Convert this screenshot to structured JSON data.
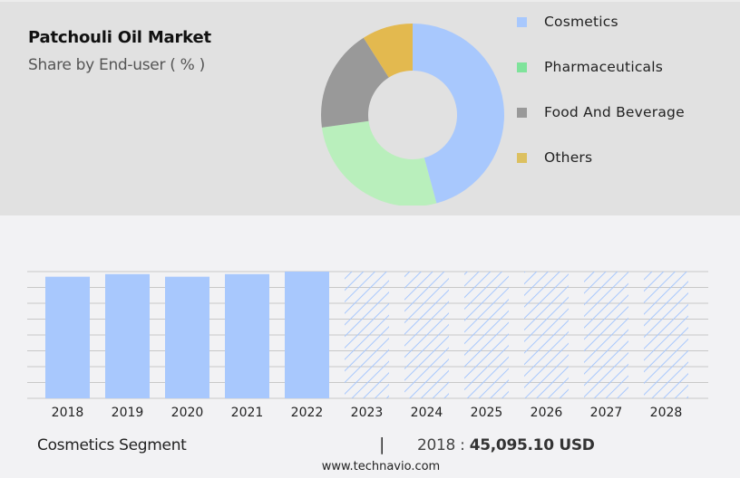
{
  "header": {
    "title": "Patchouli Oil Market",
    "subtitle": "Share by End-user ( % )"
  },
  "colors": {
    "top_panel_bg": "#e1e1e1",
    "page_bg": "#f2f2f4",
    "cosmetics": "#a8c8fd",
    "pharmaceuticals": "#b9efbc",
    "food_and_beverage": "#999999",
    "others": "#e3b94f",
    "gridline": "#c8c8c8"
  },
  "legend": {
    "items": [
      {
        "label": "Cosmetics",
        "color": "#a8c8fd"
      },
      {
        "label": "Pharmaceuticals",
        "color": "#7fe39b"
      },
      {
        "label": "Food And Beverage",
        "color": "#999999"
      },
      {
        "label": "Others",
        "color": "#dcc060"
      }
    ]
  },
  "footer": {
    "segment_label": "Cosmetics Segment",
    "separator": "|",
    "year": "2018",
    "colon": " : ",
    "value": "45,095.10 USD",
    "url": "www.technavio.com"
  },
  "chart_data": [
    {
      "type": "pie",
      "subtype": "donut",
      "title": "Patchouli Oil Market",
      "subtitle": "Share by End-user ( % )",
      "categories": [
        "Cosmetics",
        "Pharmaceuticals",
        "Food And Beverage",
        "Others"
      ],
      "values": [
        45.8,
        27.0,
        18.2,
        9.0
      ],
      "colors": [
        "#a8c8fd",
        "#b9efbc",
        "#999999",
        "#e3b94f"
      ],
      "legend_position": "right"
    },
    {
      "type": "bar",
      "title": "Cosmetics Segment",
      "categories": [
        "2018",
        "2019",
        "2020",
        "2021",
        "2022",
        "2023",
        "2024",
        "2025",
        "2026",
        "2027",
        "2028"
      ],
      "values": [
        45095.1,
        46060,
        45095,
        46060,
        47000,
        47000,
        47000,
        47000,
        47000,
        47000,
        47000
      ],
      "forecast_from": "2023",
      "forecast_style": "hatched",
      "xlabel": "",
      "ylabel": "",
      "grid": true,
      "y_axis_labels_visible": false,
      "annotation": "2018 : 45,095.10 USD"
    }
  ]
}
